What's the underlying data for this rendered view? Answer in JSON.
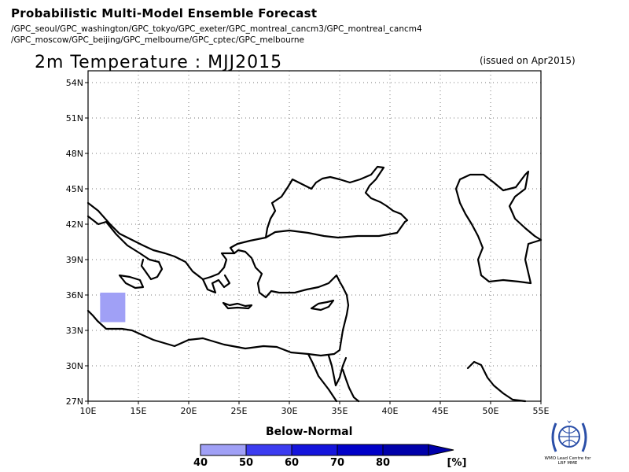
{
  "header": {
    "title": "Probabilistic Multi-Model Ensemble Forecast",
    "models_line_1": "/GPC_seoul/GPC_washington/GPC_tokyo/GPC_exeter/GPC_montreal_cancm3/GPC_montreal_cancm4",
    "models_line_2": "/GPC_moscow/GPC_beijing/GPC_melbourne/GPC_cptec/GPC_melbourne"
  },
  "map": {
    "title": "2m Temperature : MJJ2015",
    "issued_note": "(issued on Apr2015)",
    "lon_range": [
      10,
      55
    ],
    "lat_range": [
      27,
      55
    ],
    "lat_ticks": [
      "54N",
      "51N",
      "48N",
      "45N",
      "42N",
      "39N",
      "36N",
      "33N",
      "30N",
      "27N"
    ],
    "lon_ticks": [
      "10E",
      "15E",
      "20E",
      "25E",
      "30E",
      "35E",
      "40E",
      "45E",
      "50E",
      "55E"
    ],
    "grid": "dotted",
    "shaded_cells": [
      {
        "category": "Below-Normal",
        "probability_bin": "40-50",
        "lon": [
          11.2,
          13.7
        ],
        "lat": [
          33.7,
          36.2
        ],
        "color": "#a0a0f6"
      }
    ]
  },
  "legend": {
    "title": "Below-Normal",
    "labels": [
      "40",
      "50",
      "60",
      "70",
      "80",
      "[%]"
    ],
    "colors": [
      "#a0a0f6",
      "#3c3cf0",
      "#1414dc",
      "#0000c8",
      "#0000aa"
    ]
  },
  "logo": {
    "icon": "wmo-emblem-icon",
    "text": "WMO Lead Centre for LRF MME"
  }
}
